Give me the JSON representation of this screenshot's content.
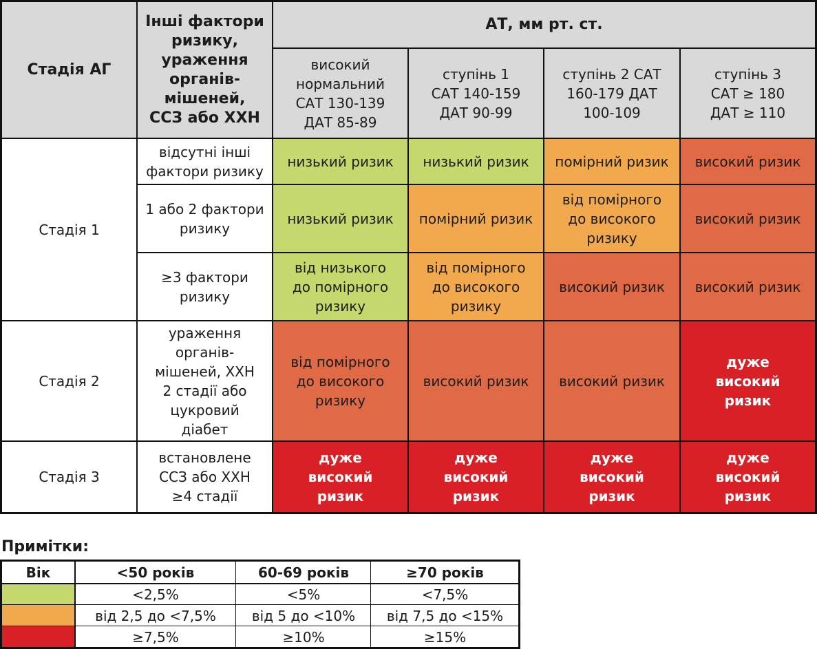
{
  "colors": {
    "low": "#c4d86e",
    "moderate": "#f2a94e",
    "high": "#e06a45",
    "very_high": "#d92027",
    "header": "#d9d9d9"
  },
  "main_table": {
    "header": {
      "stage": "Стадія АГ",
      "factors": "Інші фактори ризику, ураження органів-мішеней, ССЗ або ХХН",
      "bp": "АТ, мм рт. ст.",
      "bp_cols": [
        "високий нормальний САТ 130-139 ДАТ 85-89",
        "ступінь 1 САТ 140-159 ДАТ 90-99",
        "ступінь 2 САТ 160-179 ДАТ 100-109",
        "ступінь 3 САТ ≥ 180 ДАТ ≥ 110"
      ]
    },
    "stages": [
      "Стадія 1",
      "Стадія 2",
      "Стадія 3"
    ],
    "rows": [
      {
        "factor": "відсутні інші фактори ризику",
        "cells": [
          "низький ризик",
          "низький ризик",
          "помірний ризик",
          "високий ризик"
        ]
      },
      {
        "factor": "1 або 2 фактори ризику",
        "cells": [
          "низький ризик",
          "помірний ризик",
          "від помірного до високого ризику",
          "високий ризик"
        ]
      },
      {
        "factor": "≥3 фактори ризику",
        "cells": [
          "від низького до помірного ризику",
          "від помірного до високого ризику",
          "високий ризик",
          "високий ризик"
        ]
      },
      {
        "factor": "ураження органів-мішеней, ХХН 2 стадії або цукровий діабет",
        "cells": [
          "від помірного до високого ризику",
          "високий ризик",
          "високий ризик",
          "дуже високий ризик"
        ]
      },
      {
        "factor": "встановлене ССЗ або ХХН ≥4 стадії",
        "cells": [
          "дуже високий ризик",
          "дуже високий ризик",
          "дуже високий ризик",
          "дуже високий ризик"
        ]
      }
    ]
  },
  "notes": {
    "title": "Примітки:",
    "header": [
      "Вік",
      "<50 років",
      "60-69 років",
      "≥70 років"
    ],
    "rows": [
      [
        "<2,5%",
        "<5%",
        "<7,5%"
      ],
      [
        "від 2,5 до <7,5%",
        "від 5 до <10%",
        "від 7,5 до <15%"
      ],
      [
        "≥7,5%",
        "≥10%",
        "≥15%"
      ]
    ]
  }
}
